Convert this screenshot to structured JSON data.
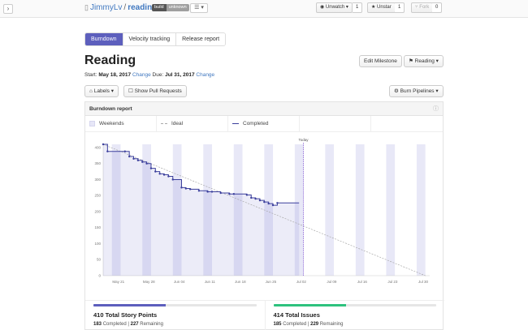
{
  "header": {
    "book_icon": "book-icon",
    "owner": "JimmyLv",
    "separator": "/",
    "repo": "reading",
    "badge": {
      "left": "build",
      "right": "unknown"
    },
    "list_icon": "☰ ▾",
    "watch": {
      "label": "Unwatch ▾",
      "count": "1"
    },
    "star": {
      "label": "Unstar",
      "count": "1"
    },
    "fork": {
      "label": "Fork",
      "count": "0"
    }
  },
  "tabs": [
    {
      "label": "Burndown",
      "active": true
    },
    {
      "label": "Velocity tracking",
      "active": false
    },
    {
      "label": "Release report",
      "active": false
    }
  ],
  "milestone": {
    "title": "Reading",
    "edit_label": "Edit Milestone",
    "reading_label": "Reading ▾",
    "start_label": "Start:",
    "start_date": "May 18, 2017",
    "change_label": "Change",
    "due_label": "Due:",
    "due_date": "Jul 31, 2017"
  },
  "filters": {
    "labels_label": "Labels ▾",
    "show_prs_label": "Show Pull Requests",
    "burn_pipelines_label": "Burn Pipelines ▾"
  },
  "report": {
    "title": "Burndown report",
    "info_icon": "info-icon",
    "legend": {
      "weekends": "Weekends",
      "ideal": "Ideal",
      "completed": "Completed"
    }
  },
  "chart_data": {
    "type": "line",
    "today_label": "Today",
    "today_x": 45,
    "x_ticks": [
      {
        "label": "May 21",
        "day": 3
      },
      {
        "label": "May 28",
        "day": 10
      },
      {
        "label": "Jun 04",
        "day": 17
      },
      {
        "label": "Jun 11",
        "day": 24
      },
      {
        "label": "Jun 18",
        "day": 31
      },
      {
        "label": "Jun 25",
        "day": 38
      },
      {
        "label": "Jul 02",
        "day": 45
      },
      {
        "label": "Jul 09",
        "day": 52
      },
      {
        "label": "Jul 16",
        "day": 59
      },
      {
        "label": "Jul 23",
        "day": 66
      },
      {
        "label": "Jul 30",
        "day": 73
      }
    ],
    "y_ticks": [
      0,
      50,
      100,
      150,
      200,
      250,
      300,
      350,
      400
    ],
    "xlim": [
      0,
      75
    ],
    "ylim": [
      0,
      410
    ],
    "weekend_days": [
      2,
      9,
      16,
      23,
      30,
      37,
      44,
      51,
      58,
      65,
      72
    ],
    "series": [
      {
        "name": "Ideal",
        "points": [
          [
            0,
            410
          ],
          [
            74,
            0
          ]
        ]
      },
      {
        "name": "Completed",
        "points": [
          [
            0,
            410
          ],
          [
            1,
            388
          ],
          [
            5,
            388
          ],
          [
            6,
            372
          ],
          [
            7,
            365
          ],
          [
            8,
            360
          ],
          [
            9,
            355
          ],
          [
            10,
            350
          ],
          [
            11,
            335
          ],
          [
            12,
            325
          ],
          [
            13,
            318
          ],
          [
            14,
            315
          ],
          [
            15,
            310
          ],
          [
            16,
            300
          ],
          [
            18,
            275
          ],
          [
            19,
            272
          ],
          [
            20,
            270
          ],
          [
            22,
            265
          ],
          [
            24,
            262
          ],
          [
            25,
            262
          ],
          [
            27,
            258
          ],
          [
            29,
            255
          ],
          [
            30,
            255
          ],
          [
            33,
            252
          ],
          [
            34,
            243
          ],
          [
            35,
            240
          ],
          [
            36,
            235
          ],
          [
            37,
            230
          ],
          [
            38,
            225
          ],
          [
            39,
            220
          ],
          [
            40,
            227
          ],
          [
            45,
            227
          ]
        ]
      }
    ]
  },
  "totals": {
    "story_points": {
      "total": "410 Total Story Points",
      "completed": "183",
      "completed_label": "Completed",
      "remaining": "227",
      "remaining_label": "Remaining",
      "progress": 0.446,
      "color": "#5d5fbd"
    },
    "issues": {
      "total": "414 Total Issues",
      "completed": "185",
      "completed_label": "Completed",
      "remaining": "229",
      "remaining_label": "Remaining",
      "progress": 0.447,
      "color": "#2ec27e"
    }
  }
}
